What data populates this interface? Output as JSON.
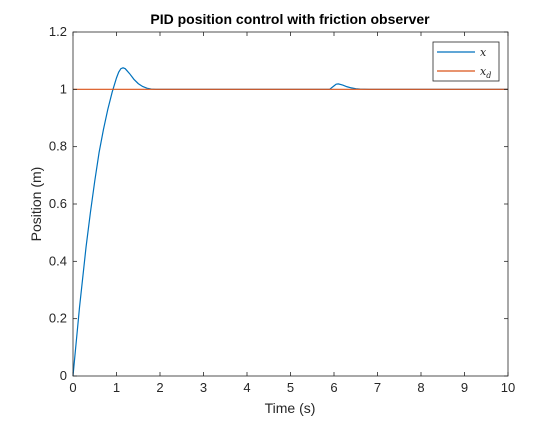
{
  "chart_data": {
    "type": "line",
    "title": "PID position control with friction observer",
    "xlabel": "Time (s)",
    "ylabel": "Position (m)",
    "xlim": [
      0,
      10
    ],
    "ylim": [
      0,
      1.2
    ],
    "xticks": [
      0,
      1,
      2,
      3,
      4,
      5,
      6,
      7,
      8,
      9,
      10
    ],
    "yticks": [
      0,
      0.2,
      0.4,
      0.6,
      0.8,
      1,
      1.2
    ],
    "grid": false,
    "legend_position": "top-right",
    "series": [
      {
        "name": "x",
        "name_subscript": "",
        "color": "#0072BD",
        "x": [
          0,
          0.05,
          0.1,
          0.15,
          0.2,
          0.3,
          0.4,
          0.5,
          0.6,
          0.7,
          0.8,
          0.9,
          1.0,
          1.05,
          1.1,
          1.15,
          1.2,
          1.3,
          1.4,
          1.5,
          1.6,
          1.7,
          1.8,
          1.9,
          2.0,
          2.2,
          2.5,
          3.0,
          4.0,
          5.0,
          5.9,
          6.0,
          6.05,
          6.1,
          6.2,
          6.3,
          6.4,
          6.5,
          6.6,
          6.8,
          7.0,
          8.0,
          9.0,
          10.0
        ],
        "y": [
          0,
          0.08,
          0.16,
          0.24,
          0.31,
          0.45,
          0.57,
          0.68,
          0.78,
          0.86,
          0.93,
          0.99,
          1.04,
          1.06,
          1.072,
          1.075,
          1.072,
          1.055,
          1.035,
          1.02,
          1.01,
          1.004,
          1.001,
          1.0,
          1.0,
          1.0,
          1.0,
          1.0,
          1.0,
          1.0,
          1.0,
          1.012,
          1.018,
          1.019,
          1.015,
          1.009,
          1.005,
          1.002,
          1.001,
          1.0,
          1.0,
          1.0,
          1.0,
          1.0
        ]
      },
      {
        "name": "x",
        "name_subscript": "d",
        "color": "#D95319",
        "x": [
          0,
          10
        ],
        "y": [
          1,
          1
        ]
      }
    ]
  }
}
